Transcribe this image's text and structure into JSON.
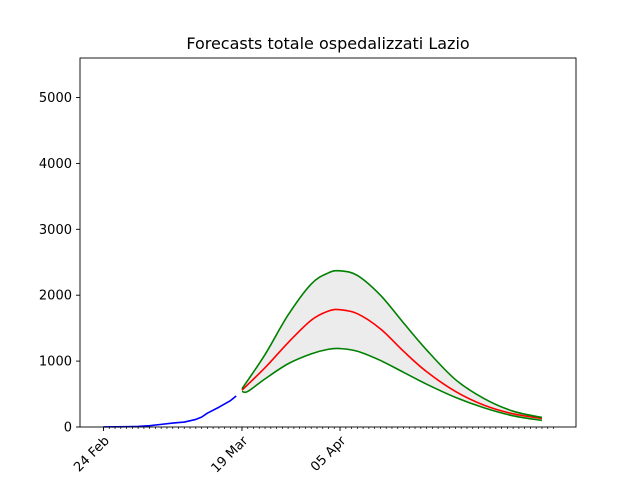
{
  "chart_data": {
    "type": "line",
    "title": "Forecasts totale ospedalizzati Lazio",
    "xlabel": "",
    "ylabel": "",
    "x_range_days": [
      "2020-02-24",
      "2020-05-12"
    ],
    "ylim": [
      0,
      5600
    ],
    "yticks": [
      0,
      1000,
      2000,
      3000,
      4000,
      5000
    ],
    "xtick_labels": [
      {
        "date": "2020-02-24",
        "label": "24 Feb"
      },
      {
        "date": "2020-03-19",
        "label": "19 Mar"
      },
      {
        "date": "2020-04-05",
        "label": "05 Apr"
      }
    ],
    "grid": false,
    "legend": "none",
    "series": [
      {
        "role": "observed",
        "color": "#0000ff",
        "points": [
          [
            "2020-02-24",
            2
          ],
          [
            "2020-02-26",
            3
          ],
          [
            "2020-02-28",
            4
          ],
          [
            "2020-03-01",
            8
          ],
          [
            "2020-03-03",
            20
          ],
          [
            "2020-03-05",
            40
          ],
          [
            "2020-03-07",
            60
          ],
          [
            "2020-03-09",
            75
          ],
          [
            "2020-03-11",
            115
          ],
          [
            "2020-03-12",
            150
          ],
          [
            "2020-03-13",
            210
          ],
          [
            "2020-03-15",
            300
          ],
          [
            "2020-03-17",
            400
          ],
          [
            "2020-03-18",
            470
          ]
        ]
      },
      {
        "role": "forecast",
        "color": "#ff0000",
        "points": [
          [
            "2020-03-19",
            560
          ],
          [
            "2020-03-23",
            900
          ],
          [
            "2020-03-27",
            1280
          ],
          [
            "2020-03-31",
            1620
          ],
          [
            "2020-04-03",
            1760
          ],
          [
            "2020-04-05",
            1780
          ],
          [
            "2020-04-08",
            1720
          ],
          [
            "2020-04-12",
            1490
          ],
          [
            "2020-04-16",
            1150
          ],
          [
            "2020-04-20",
            840
          ],
          [
            "2020-04-25",
            540
          ],
          [
            "2020-04-30",
            330
          ],
          [
            "2020-05-05",
            200
          ],
          [
            "2020-05-10",
            130
          ]
        ]
      },
      {
        "role": "upper-bound",
        "color": "#008000",
        "points": [
          [
            "2020-03-19",
            580
          ],
          [
            "2020-03-23",
            1100
          ],
          [
            "2020-03-27",
            1700
          ],
          [
            "2020-03-31",
            2170
          ],
          [
            "2020-04-03",
            2340
          ],
          [
            "2020-04-05",
            2370
          ],
          [
            "2020-04-08",
            2300
          ],
          [
            "2020-04-12",
            2000
          ],
          [
            "2020-04-16",
            1580
          ],
          [
            "2020-04-20",
            1170
          ],
          [
            "2020-04-25",
            720
          ],
          [
            "2020-04-30",
            430
          ],
          [
            "2020-05-05",
            240
          ],
          [
            "2020-05-10",
            145
          ]
        ]
      },
      {
        "role": "lower-bound",
        "color": "#008000",
        "points": [
          [
            "2020-03-19",
            540
          ],
          [
            "2020-03-20",
            540
          ],
          [
            "2020-03-23",
            730
          ],
          [
            "2020-03-27",
            960
          ],
          [
            "2020-03-31",
            1110
          ],
          [
            "2020-04-03",
            1180
          ],
          [
            "2020-04-05",
            1190
          ],
          [
            "2020-04-08",
            1150
          ],
          [
            "2020-04-12",
            1010
          ],
          [
            "2020-04-16",
            830
          ],
          [
            "2020-04-20",
            650
          ],
          [
            "2020-04-25",
            450
          ],
          [
            "2020-04-30",
            290
          ],
          [
            "2020-05-05",
            170
          ],
          [
            "2020-05-10",
            100
          ]
        ]
      }
    ],
    "band": {
      "between": [
        "upper-bound",
        "lower-bound"
      ],
      "color": "#e6e6e6"
    }
  }
}
